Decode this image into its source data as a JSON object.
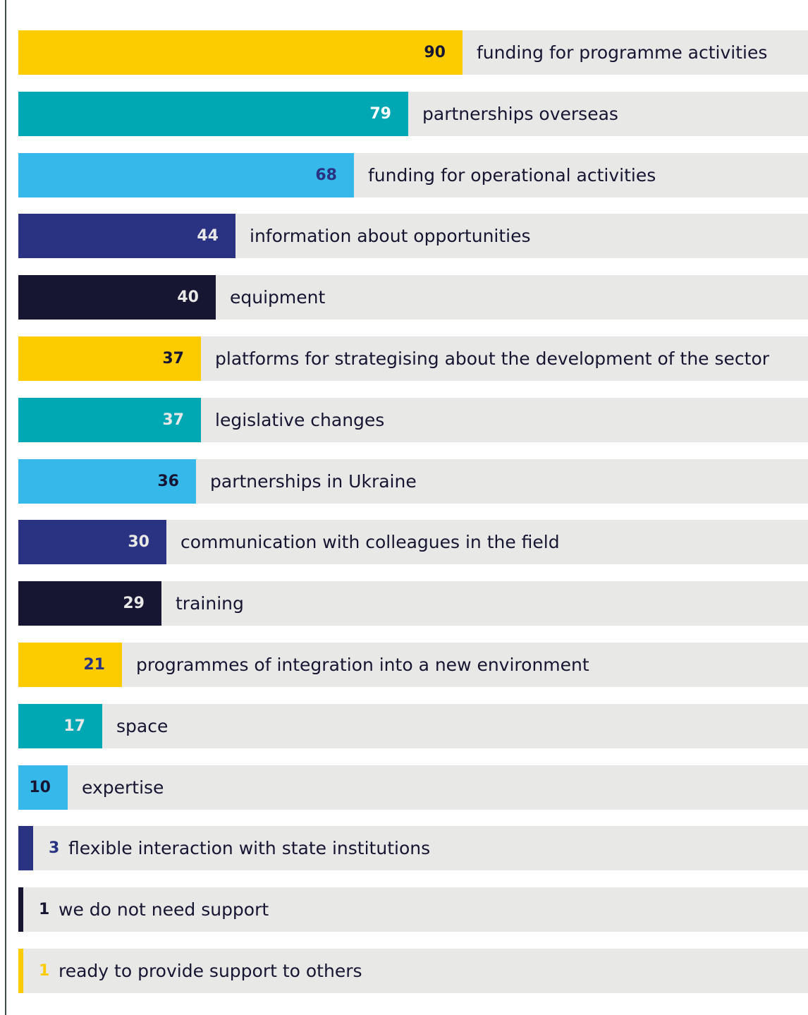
{
  "chart_data": {
    "type": "bar",
    "orientation": "horizontal",
    "xlim": [
      0,
      100
    ],
    "categories": [
      "funding for programme activities",
      "partnerships overseas",
      "funding for operational activities",
      "information about opportunities",
      "equipment",
      "platforms for strategising about the development of the sector",
      "legislative changes",
      "partnerships in Ukraine",
      "communication with colleagues in the field",
      "training",
      "programmes of integration into a new environment",
      "space",
      "expertise",
      "flexible interaction with state institutions",
      "we do not need support",
      "ready to provide support to others"
    ],
    "values": [
      90,
      79,
      68,
      44,
      40,
      37,
      37,
      36,
      30,
      29,
      21,
      17,
      10,
      3,
      1,
      1
    ],
    "bar_colors": [
      "#fdcc00",
      "#00a8b4",
      "#37b8eb",
      "#2a3282",
      "#161532",
      "#fdcc00",
      "#00a8b4",
      "#37b8eb",
      "#2a3282",
      "#161532",
      "#fdcc00",
      "#00a8b4",
      "#37b8eb",
      "#2a3282",
      "#161532",
      "#fdcc00"
    ],
    "value_label_colors": [
      "#161532",
      "#ffffff",
      "#2a3282",
      "#e8e8e7",
      "#e8e8e7",
      "#161532",
      "#e8e8e7",
      "#161532",
      "#e8e8e7",
      "#e8e8e7",
      "#2a3282",
      "#e8e8e7",
      "#161532",
      "#2a3282",
      "#161532",
      "#fdcc00"
    ],
    "track_color": "#e8e8e7",
    "grid": false,
    "legend": "none"
  }
}
